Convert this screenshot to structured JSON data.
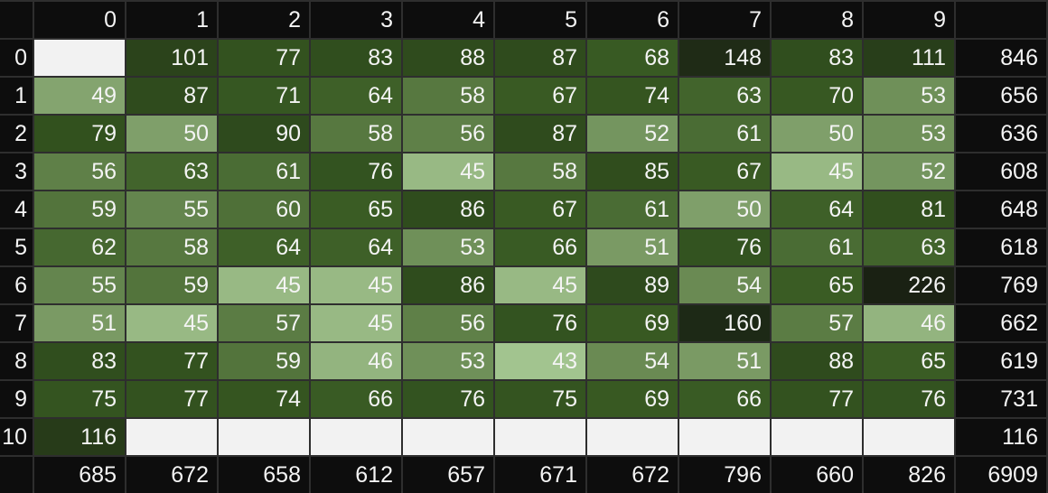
{
  "chart_data": {
    "type": "heatmap",
    "columns": [
      "0",
      "1",
      "2",
      "3",
      "4",
      "5",
      "6",
      "7",
      "8",
      "9"
    ],
    "rows": [
      "0",
      "1",
      "2",
      "3",
      "4",
      "5",
      "6",
      "7",
      "8",
      "9",
      "10"
    ],
    "values": [
      [
        null,
        101,
        77,
        83,
        88,
        87,
        68,
        148,
        83,
        111
      ],
      [
        49,
        87,
        71,
        64,
        58,
        67,
        74,
        63,
        70,
        53
      ],
      [
        79,
        50,
        90,
        58,
        56,
        87,
        52,
        61,
        50,
        53
      ],
      [
        56,
        63,
        61,
        76,
        45,
        58,
        85,
        67,
        45,
        52
      ],
      [
        59,
        55,
        60,
        65,
        86,
        67,
        61,
        50,
        64,
        81
      ],
      [
        62,
        58,
        64,
        64,
        53,
        66,
        51,
        76,
        61,
        63
      ],
      [
        55,
        59,
        45,
        45,
        86,
        45,
        89,
        54,
        65,
        226
      ],
      [
        51,
        45,
        57,
        45,
        56,
        76,
        69,
        160,
        57,
        46
      ],
      [
        83,
        77,
        59,
        46,
        53,
        43,
        54,
        51,
        88,
        65
      ],
      [
        75,
        77,
        74,
        66,
        76,
        75,
        69,
        66,
        77,
        76
      ],
      [
        116,
        null,
        null,
        null,
        null,
        null,
        null,
        null,
        null,
        null
      ]
    ],
    "row_totals": [
      846,
      656,
      636,
      608,
      648,
      618,
      769,
      662,
      619,
      731,
      116
    ],
    "column_totals": [
      685,
      672,
      658,
      612,
      657,
      671,
      672,
      796,
      660,
      826
    ],
    "grand_total": 6909,
    "colors": {
      "low": "#a2c48f",
      "high": "#1a2113",
      "empty": "#f2f2f2",
      "header": "#0d0d0d"
    }
  }
}
